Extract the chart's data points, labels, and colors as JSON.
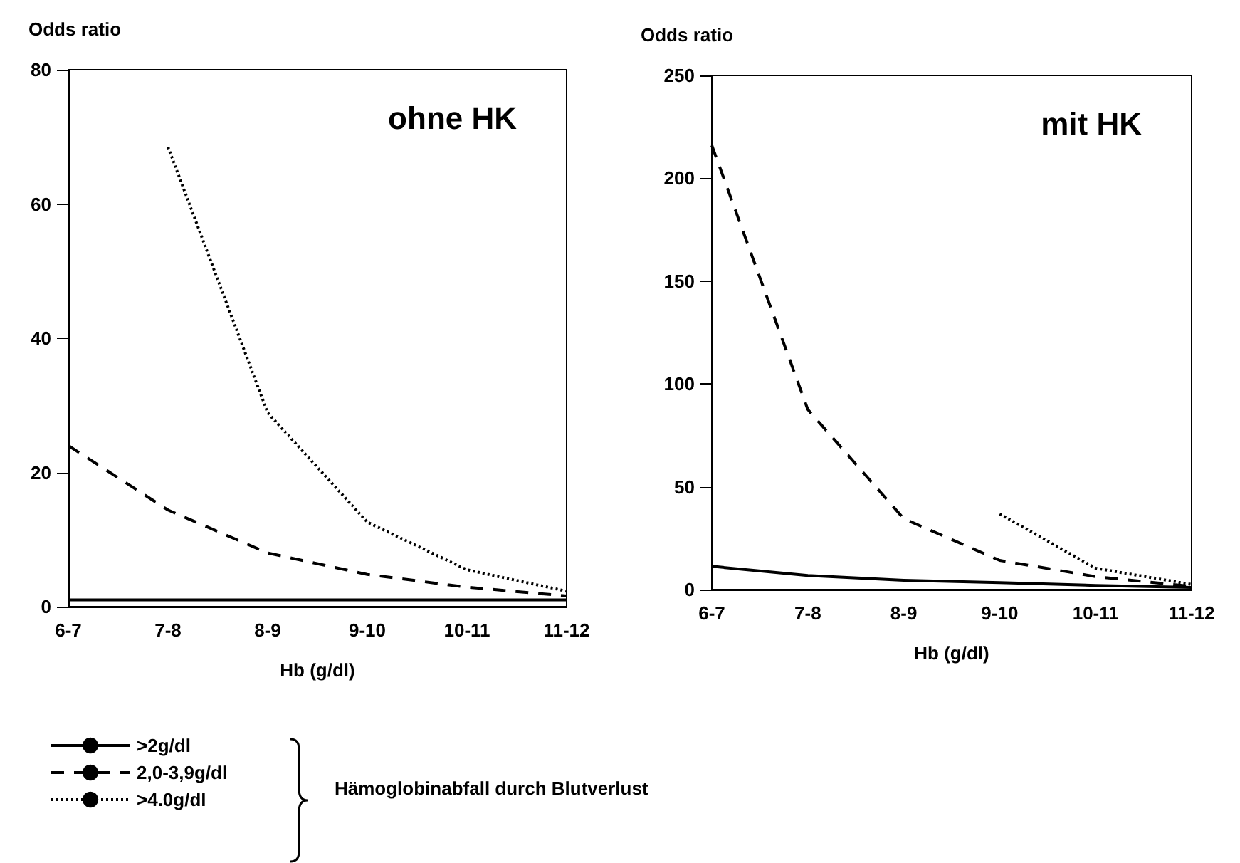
{
  "chart_data": [
    {
      "type": "line",
      "title": "ohne HK",
      "ylabel": "Odds ratio",
      "xlabel": "Hb (g/dl)",
      "legend_title": "Hämoglobinabfall durch Blutverlust",
      "categories": [
        "6-7",
        "7-8",
        "8-9",
        "9-10",
        "10-11",
        "11-12"
      ],
      "ylim": [
        0,
        80
      ],
      "yticks": [
        0,
        20,
        40,
        60,
        80
      ],
      "grid": false,
      "legend": "bottom left",
      "marker": "none",
      "series": [
        {
          "name": ">2g/dl",
          "color": "#000000",
          "line_style": "solid",
          "values": [
            1,
            1,
            1,
            1,
            1,
            1
          ]
        },
        {
          "name": "2,0-3,9g/dl",
          "color": "#000000",
          "line_style": "dashed",
          "values": [
            24,
            14.4,
            8,
            4.8,
            2.9,
            1.6
          ]
        },
        {
          "name": ">4.0g/dl",
          "color": "#000000",
          "line_style": "dotted",
          "values": [
            null,
            68.5,
            28.9,
            12.6,
            5.5,
            2.3
          ]
        }
      ]
    },
    {
      "type": "line",
      "title": "mit HK",
      "ylabel": "Odds ratio",
      "xlabel": "Hb (g/dl)",
      "categories": [
        "6-7",
        "7-8",
        "8-9",
        "9-10",
        "10-11",
        "11-12"
      ],
      "ylim": [
        0,
        250
      ],
      "yticks": [
        0,
        50,
        100,
        150,
        200,
        250
      ],
      "grid": false,
      "legend": false,
      "marker": "none",
      "series": [
        {
          "color": "#000000",
          "line_style": "solid",
          "values": [
            11.3,
            6.8,
            4.5,
            3.4,
            2,
            1
          ]
        },
        {
          "color": "#000000",
          "line_style": "dashed",
          "values": [
            216,
            87.6,
            34.5,
            14.2,
            6.3,
            1.5
          ]
        },
        {
          "color": "#000000",
          "line_style": "dotted",
          "values": [
            null,
            null,
            null,
            36.8,
            10.4,
            2.5
          ]
        }
      ]
    }
  ]
}
